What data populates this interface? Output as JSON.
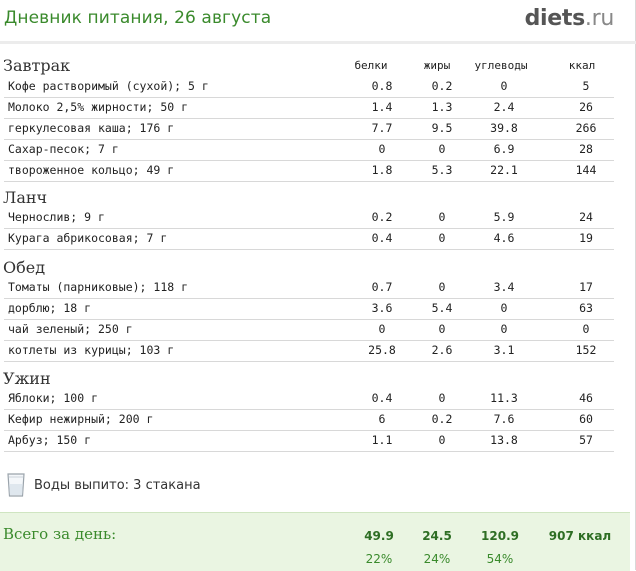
{
  "header": {
    "title": "Дневник питания, 26 августа",
    "brand_main": "diets",
    "brand_tld": ".ru"
  },
  "columns": {
    "protein": "белки",
    "fat": "жиры",
    "carbs": "углеводы",
    "kcal": "ккал"
  },
  "meals": [
    {
      "title": "Завтрак",
      "items": [
        {
          "name": "Кофе растворимый (сухой); 5 г",
          "protein": "0.8",
          "fat": "0.2",
          "carbs": "0",
          "kcal": "5"
        },
        {
          "name": "Молоко 2,5% жирности; 50 г",
          "protein": "1.4",
          "fat": "1.3",
          "carbs": "2.4",
          "kcal": "26"
        },
        {
          "name": "геркулесовая каша; 176 г",
          "protein": "7.7",
          "fat": "9.5",
          "carbs": "39.8",
          "kcal": "266"
        },
        {
          "name": "Сахар-песок; 7 г",
          "protein": "0",
          "fat": "0",
          "carbs": "6.9",
          "kcal": "28"
        },
        {
          "name": "твороженное кольцо; 49 г",
          "protein": "1.8",
          "fat": "5.3",
          "carbs": "22.1",
          "kcal": "144"
        }
      ]
    },
    {
      "title": "Ланч",
      "items": [
        {
          "name": "Чернослив; 9 г",
          "protein": "0.2",
          "fat": "0",
          "carbs": "5.9",
          "kcal": "24"
        },
        {
          "name": "Курага абрикосовая; 7 г",
          "protein": "0.4",
          "fat": "0",
          "carbs": "4.6",
          "kcal": "19"
        }
      ]
    },
    {
      "title": "Обед",
      "items": [
        {
          "name": "Томаты (парниковые); 118 г",
          "protein": "0.7",
          "fat": "0",
          "carbs": "3.4",
          "kcal": "17"
        },
        {
          "name": "дорблю; 18 г",
          "protein": "3.6",
          "fat": "5.4",
          "carbs": "0",
          "kcal": "63"
        },
        {
          "name": "чай зеленый; 250 г",
          "protein": "0",
          "fat": "0",
          "carbs": "0",
          "kcal": "0"
        },
        {
          "name": "котлеты из курицы; 103 г",
          "protein": "25.8",
          "fat": "2.6",
          "carbs": "3.1",
          "kcal": "152"
        }
      ]
    },
    {
      "title": "Ужин",
      "items": [
        {
          "name": "Яблоки; 100 г",
          "protein": "0.4",
          "fat": "0",
          "carbs": "11.3",
          "kcal": "46"
        },
        {
          "name": "Кефир нежирный; 200 г",
          "protein": "6",
          "fat": "0.2",
          "carbs": "7.6",
          "kcal": "60"
        },
        {
          "name": "Арбуз; 150 г",
          "protein": "1.1",
          "fat": "0",
          "carbs": "13.8",
          "kcal": "57"
        }
      ]
    }
  ],
  "water": {
    "label": "Воды выпито: 3 стакана",
    "icon": "water-glass-icon"
  },
  "total": {
    "label": "Всего за день:",
    "protein": "49.9",
    "fat": "24.5",
    "carbs": "120.9",
    "kcal": "907 ккал",
    "protein_pct": "22%",
    "fat_pct": "24%",
    "carbs_pct": "54%"
  },
  "colors": {
    "accent_green": "#3a8a2c",
    "total_bg": "#eaf5e2"
  }
}
